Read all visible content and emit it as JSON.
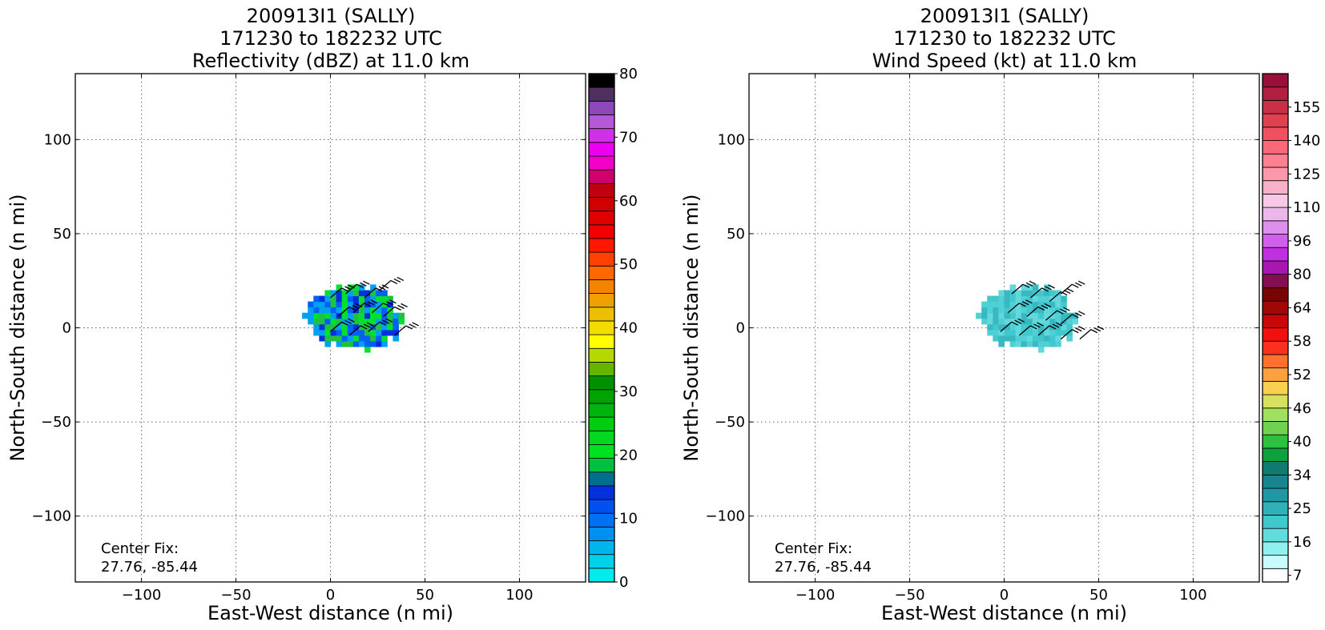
{
  "chart_data": [
    {
      "type": "heatmap",
      "title_lines": [
        "200913I1 (SALLY)",
        "171230 to 182232 UTC",
        "Reflectivity (dBZ) at 11.0 km"
      ],
      "xlabel": "East-West distance (n mi)",
      "ylabel": "North-South distance (n mi)",
      "xlim": [
        -135,
        135
      ],
      "ylim": [
        -135,
        135
      ],
      "xticks": [
        -100,
        -50,
        0,
        50,
        100
      ],
      "yticks": [
        100,
        50,
        0,
        -50,
        -100
      ],
      "grid": true,
      "center_fix_label": "Center Fix:",
      "center_fix_value": "27.76, -85.44",
      "colorbar": {
        "ticks": [
          "80",
          "70",
          "60",
          "50",
          "40",
          "30",
          "20",
          "10",
          "0"
        ],
        "colors": [
          "#00ecec",
          "#00d0e8",
          "#00b4ec",
          "#0090f0",
          "#0070f4",
          "#0050f0",
          "#0030e0",
          "#006e8c",
          "#00c040",
          "#00e020",
          "#00d820",
          "#00cc10",
          "#00b410",
          "#00a400",
          "#009000",
          "#64b400",
          "#b4d800",
          "#ffff00",
          "#f4dc00",
          "#ecc000",
          "#f0a000",
          "#f48400",
          "#ff6800",
          "#ff4000",
          "#ff1800",
          "#f00000",
          "#e00000",
          "#d00000",
          "#c00010",
          "#d0006c",
          "#f000c8",
          "#ec00f0",
          "#d030e8",
          "#b458d8",
          "#8c48b8",
          "#503060",
          "#000000"
        ]
      },
      "echo_colors": [
        "#0030e0",
        "#0060f4",
        "#00a0f0",
        "#20c040",
        "#00e030"
      ],
      "barbs_xy": [
        [
          0,
          16
        ],
        [
          8,
          18
        ],
        [
          18,
          16
        ],
        [
          26,
          20
        ],
        [
          4,
          6
        ],
        [
          12,
          8
        ],
        [
          22,
          8
        ],
        [
          28,
          6
        ],
        [
          0,
          -2
        ],
        [
          10,
          -4
        ],
        [
          20,
          -2
        ],
        [
          34,
          -4
        ]
      ]
    },
    {
      "type": "heatmap",
      "title_lines": [
        "200913I1 (SALLY)",
        "171230 to 182232 UTC",
        "Wind Speed (kt) at 11.0 km"
      ],
      "xlabel": "East-West distance (n mi)",
      "ylabel": "North-South distance (n mi)",
      "xlim": [
        -135,
        135
      ],
      "ylim": [
        -135,
        135
      ],
      "xticks": [
        -100,
        -50,
        0,
        50,
        100
      ],
      "yticks": [
        100,
        50,
        0,
        -50,
        -100
      ],
      "grid": true,
      "center_fix_label": "Center Fix:",
      "center_fix_value": "27.76, -85.44",
      "colorbar": {
        "ticks": [
          "155",
          "140",
          "125",
          "110",
          "96",
          "80",
          "64",
          "58",
          "52",
          "46",
          "40",
          "34",
          "25",
          "16",
          "7"
        ],
        "colors": [
          "#ffffff",
          "#c8fcfc",
          "#90f0f0",
          "#60dcdc",
          "#40c8cc",
          "#30b0b8",
          "#2098a4",
          "#188490",
          "#107c70",
          "#10a040",
          "#30c040",
          "#70d050",
          "#a0e060",
          "#d8e060",
          "#f8d050",
          "#fca040",
          "#fc7030",
          "#fc3020",
          "#f01010",
          "#c80808",
          "#a00808",
          "#780404",
          "#801050",
          "#a818b0",
          "#c030e0",
          "#d060ec",
          "#dc90ec",
          "#ecb8ec",
          "#f8c8e8",
          "#fcb0c8",
          "#fc98a8",
          "#fc8090",
          "#f86878",
          "#f05060",
          "#e04050",
          "#c83048",
          "#b02040",
          "#981038"
        ]
      },
      "echo_colors": [
        "#40c8cc",
        "#50d0d4",
        "#38b8c0",
        "#60d8dc"
      ],
      "barbs_xy": [
        [
          4,
          18
        ],
        [
          14,
          16
        ],
        [
          24,
          14
        ],
        [
          30,
          18
        ],
        [
          2,
          8
        ],
        [
          12,
          6
        ],
        [
          22,
          4
        ],
        [
          30,
          2
        ],
        [
          -2,
          -2
        ],
        [
          8,
          -4
        ],
        [
          18,
          -4
        ],
        [
          30,
          -6
        ],
        [
          40,
          -6
        ]
      ]
    }
  ]
}
